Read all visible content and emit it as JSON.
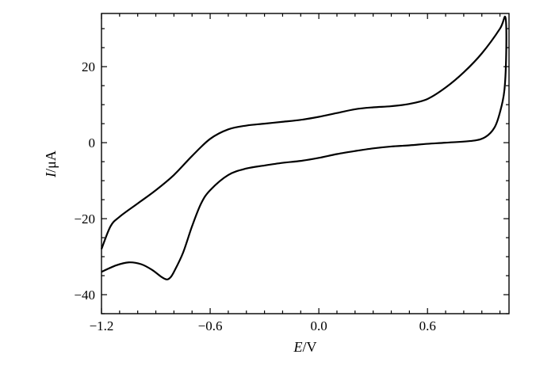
{
  "chart_data": {
    "type": "line",
    "title": "",
    "xlabel": {
      "symbol": "E",
      "unit": "V"
    },
    "ylabel": {
      "symbol": "I",
      "unit": "μA"
    },
    "xlim": [
      -1.2,
      1.05
    ],
    "ylim": [
      -45,
      34
    ],
    "x_ticks": [
      {
        "value": -1.2,
        "label": "−1.2"
      },
      {
        "value": -0.6,
        "label": "−0.6"
      },
      {
        "value": 0.0,
        "label": "0.0"
      },
      {
        "value": 0.6,
        "label": "0.6"
      }
    ],
    "y_ticks": [
      {
        "value": -40,
        "label": "−40"
      },
      {
        "value": -20,
        "label": "−20"
      },
      {
        "value": 0,
        "label": "0"
      },
      {
        "value": 20,
        "label": "20"
      }
    ],
    "grid": false,
    "series": [
      {
        "color": "#000000",
        "points": [
          [
            -1.2,
            -28
          ],
          [
            -1.15,
            -22
          ],
          [
            -1.1,
            -19.5
          ],
          [
            -1.0,
            -16
          ],
          [
            -0.9,
            -12.5
          ],
          [
            -0.8,
            -8.5
          ],
          [
            -0.7,
            -3.5
          ],
          [
            -0.6,
            1
          ],
          [
            -0.5,
            3.5
          ],
          [
            -0.4,
            4.5
          ],
          [
            -0.3,
            5
          ],
          [
            -0.2,
            5.5
          ],
          [
            -0.1,
            6
          ],
          [
            0.0,
            6.8
          ],
          [
            0.1,
            7.8
          ],
          [
            0.2,
            8.8
          ],
          [
            0.3,
            9.3
          ],
          [
            0.4,
            9.6
          ],
          [
            0.5,
            10.2
          ],
          [
            0.6,
            11.5
          ],
          [
            0.7,
            14.5
          ],
          [
            0.8,
            18.5
          ],
          [
            0.9,
            23.5
          ],
          [
            1.0,
            30
          ],
          [
            1.03,
            33
          ],
          [
            1.035,
            25
          ],
          [
            1.025,
            14
          ],
          [
            1.0,
            8
          ],
          [
            0.97,
            4
          ],
          [
            0.92,
            1.5
          ],
          [
            0.85,
            0.5
          ],
          [
            0.7,
            0
          ],
          [
            0.6,
            -0.3
          ],
          [
            0.5,
            -0.7
          ],
          [
            0.4,
            -1
          ],
          [
            0.3,
            -1.5
          ],
          [
            0.2,
            -2.2
          ],
          [
            0.1,
            -3
          ],
          [
            0.0,
            -4
          ],
          [
            -0.1,
            -4.8
          ],
          [
            -0.2,
            -5.3
          ],
          [
            -0.3,
            -6
          ],
          [
            -0.4,
            -6.8
          ],
          [
            -0.5,
            -8.5
          ],
          [
            -0.6,
            -12.5
          ],
          [
            -0.65,
            -16
          ],
          [
            -0.7,
            -22
          ],
          [
            -0.75,
            -29
          ],
          [
            -0.8,
            -34
          ],
          [
            -0.82,
            -35.5
          ],
          [
            -0.84,
            -36
          ],
          [
            -0.87,
            -35.3
          ],
          [
            -0.92,
            -33.5
          ],
          [
            -0.98,
            -32
          ],
          [
            -1.05,
            -31.5
          ],
          [
            -1.12,
            -32.3
          ],
          [
            -1.2,
            -34
          ]
        ]
      }
    ]
  }
}
